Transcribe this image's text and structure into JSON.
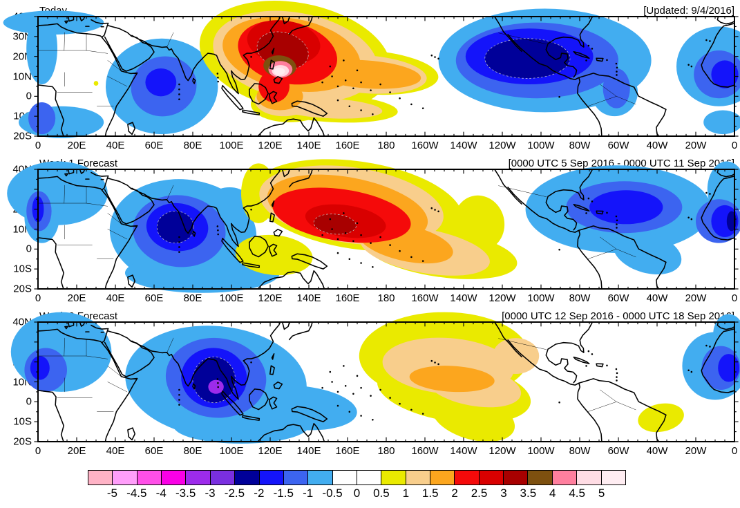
{
  "page": {
    "background": "#FFFFFF"
  },
  "axes": {
    "x_tick_labels": [
      [
        "0",
        0
      ],
      [
        "20E",
        20
      ],
      [
        "40E",
        40
      ],
      [
        "60E",
        60
      ],
      [
        "80E",
        80
      ],
      [
        "100E",
        100
      ],
      [
        "120E",
        120
      ],
      [
        "140E",
        140
      ],
      [
        "160E",
        160
      ],
      [
        "180",
        180
      ],
      [
        "160W",
        200
      ],
      [
        "140W",
        220
      ],
      [
        "120W",
        240
      ],
      [
        "100W",
        260
      ],
      [
        "80W",
        280
      ],
      [
        "60W",
        300
      ],
      [
        "40W",
        320
      ],
      [
        "20W",
        340
      ],
      [
        "0",
        360
      ]
    ],
    "y_tick_labels": [
      [
        "40N",
        40
      ],
      [
        "30N",
        30
      ],
      [
        "20N",
        20
      ],
      [
        "10N",
        10
      ],
      [
        "0",
        0
      ],
      [
        "10S",
        -10
      ],
      [
        "20S",
        -20
      ]
    ]
  },
  "colorbar": {
    "labels": [
      "-5",
      "-4.5",
      "-4",
      "-3.5",
      "-3",
      "-2.5",
      "-2",
      "-1.5",
      "-1",
      "-0.5",
      "0",
      "0.5",
      "1",
      "1.5",
      "2",
      "2.5",
      "3",
      "3.5",
      "4",
      "4.5",
      "5"
    ],
    "cell_colors": [
      "rose",
      "light_magenta",
      "magenta_pink",
      "magenta",
      "purple",
      "violet",
      "navy",
      "blue",
      "royal",
      "sky",
      "white",
      "white",
      "yellow",
      "tan",
      "orange",
      "red",
      "red2",
      "darkred",
      "brown",
      "pink",
      "lightpink",
      "palest"
    ]
  },
  "chart_data": {
    "type": "filled_contour_map",
    "projection": "equirectangular",
    "lon_range": [
      0,
      360
    ],
    "lat_range": [
      -20,
      40
    ],
    "contour_interval": 0.5,
    "palette": {
      "sky": "#42ADF0",
      "royal": "#3C64F0",
      "blue": "#1414FA",
      "navy": "#000099",
      "purple": "#9D2BEB",
      "violet": "#7A2FE0",
      "magenta": "#FA00E6",
      "magenta_pink": "#FF4FE8",
      "light_magenta": "#FF9EFA",
      "rose": "#FFB3C6",
      "white": "#FFFFFF",
      "yellow": "#EAEA00",
      "tan": "#F8CE8C",
      "orange": "#FCA61E",
      "red": "#F50A0A",
      "red2": "#D90000",
      "darkred": "#A80000",
      "brown": "#7D500F",
      "pink": "#FF7F9E",
      "lightpink": "#FFDCE4",
      "palest": "#FFEDF2"
    },
    "panels": [
      {
        "title": "Today",
        "timestamp": "[Updated: 9/4/2016]",
        "anomaly_centers": [
          {
            "lon": "126E",
            "lat": "13N",
            "sign": "positive",
            "peak_value": "> 5"
          },
          {
            "lon": "63E",
            "lat": "7N",
            "sign": "negative",
            "peak_value": "-1.5 to -2"
          },
          {
            "lon": "107W",
            "lat": "19N",
            "sign": "negative",
            "peak_value": "-2 to -2.5"
          },
          {
            "lon": "5W",
            "lat": "11N",
            "sign": "negative",
            "peak_value": "-1.5 to -2"
          }
        ],
        "shapes": [
          [
            "sky",
            262,
            22,
            55,
            26,
            0
          ],
          [
            "sky",
            298,
            38,
            12,
            12,
            0
          ],
          [
            "sky",
            352,
            25,
            22,
            20,
            0
          ],
          [
            "sky",
            354,
            53,
            10,
            6,
            0
          ],
          [
            "sky",
            8,
            3,
            26,
            6,
            0
          ],
          [
            "sky",
            2,
            16,
            8,
            18,
            0
          ],
          [
            "sky",
            12,
            53,
            22,
            8,
            0
          ],
          [
            "sky",
            64,
            35,
            29,
            24,
            0
          ],
          [
            "royal",
            65,
            35,
            17,
            15,
            -10
          ],
          [
            "royal",
            2,
            51,
            7,
            8,
            0
          ],
          [
            "royal",
            258,
            22,
            42,
            19,
            0
          ],
          [
            "royal",
            299,
            36,
            7,
            10,
            0
          ],
          [
            "royal",
            352,
            29,
            13,
            12,
            0
          ],
          [
            "blue",
            63.5,
            33,
            8,
            7,
            0
          ],
          [
            "blue",
            254,
            20,
            33,
            14,
            0
          ],
          [
            "blue",
            355,
            29,
            7,
            7,
            0
          ],
          [
            "navy",
            253,
            21,
            22,
            10,
            0,
            1
          ],
          [
            "yellow",
            133,
            20,
            50,
            27,
            10
          ],
          [
            "yellow",
            130,
            44,
            20,
            9,
            0
          ],
          [
            "yellow",
            152,
            46,
            34,
            7,
            3
          ],
          [
            "yellow",
            171,
            28,
            36,
            11,
            4
          ],
          [
            "yellow",
            30,
            33.5,
            1.2,
            1.2,
            0
          ],
          [
            "tan",
            133,
            20,
            43,
            22,
            10
          ],
          [
            "tan",
            127,
            42,
            15,
            8,
            0
          ],
          [
            "tan",
            150,
            46,
            28,
            5,
            3
          ],
          [
            "tan",
            170,
            29,
            31,
            9.5,
            4
          ],
          [
            "orange",
            131,
            19,
            36,
            18,
            10
          ],
          [
            "orange",
            125,
            40,
            12,
            7,
            0
          ],
          [
            "orange",
            170,
            29,
            28,
            7,
            4
          ],
          [
            "red",
            129,
            18,
            26,
            15.5,
            12
          ],
          [
            "red",
            122,
            35,
            8,
            8,
            0
          ],
          [
            "red2",
            127,
            13,
            19,
            11,
            8
          ],
          [
            "darkred",
            126.5,
            17,
            13.5,
            9,
            15,
            1
          ],
          [
            "brown",
            125,
            25,
            8.5,
            5.5,
            5
          ],
          [
            "pink",
            125.3,
            26.5,
            6.2,
            4.2,
            0
          ],
          [
            "lightpink",
            125.3,
            27.2,
            4.4,
            2.9,
            0
          ],
          [
            "palest",
            124.8,
            27.5,
            2.8,
            1.8,
            0
          ]
        ]
      },
      {
        "title": "Week 1 Forecast",
        "timestamp": "[0000 UTC 5 Sep 2016 - 0000 UTC 11 Sep 2016]",
        "anomaly_centers": [
          {
            "lon": "154E",
            "lat": "12N",
            "sign": "positive",
            "peak_value": "3 to 3.5"
          },
          {
            "lon": "71E",
            "lat": "11N",
            "sign": "negative",
            "peak_value": "-2 to -2.5"
          },
          {
            "lon": "56W",
            "lat": "21N",
            "sign": "negative",
            "peak_value": "-1.5 to -2"
          },
          {
            "lon": "2W",
            "lat": "14N",
            "sign": "negative",
            "peak_value": "-2 to -2.5"
          }
        ],
        "shapes": [
          [
            "sky",
            10,
            12,
            26,
            16,
            0
          ],
          [
            "sky",
            2,
            24,
            9,
            13,
            0
          ],
          [
            "sky",
            75,
            32,
            38,
            27,
            5
          ],
          [
            "sky",
            99,
            20,
            13,
            11,
            0
          ],
          [
            "sky",
            85,
            52,
            40,
            10,
            0
          ],
          [
            "sky",
            300,
            20,
            48,
            22,
            0
          ],
          [
            "sky",
            315,
            42,
            18,
            10,
            15
          ],
          [
            "sky",
            356,
            10,
            10,
            14,
            0
          ],
          [
            "royal",
            0.5,
            21,
            6.5,
            10,
            0
          ],
          [
            "royal",
            73,
            31,
            24,
            18,
            5
          ],
          [
            "royal",
            303,
            19,
            30,
            13,
            0
          ],
          [
            "royal",
            352,
            26,
            12,
            11,
            0
          ],
          [
            "blue",
            0,
            20,
            3,
            6.5,
            0
          ],
          [
            "blue",
            72,
            29,
            16,
            12,
            5
          ],
          [
            "blue",
            304,
            19,
            19,
            8.5,
            0
          ],
          [
            "blue",
            355,
            26,
            7,
            8,
            0
          ],
          [
            "navy",
            71,
            29,
            9.5,
            8,
            0,
            1
          ],
          [
            "navy",
            358.5,
            26,
            2.5,
            5,
            0
          ],
          [
            "yellow",
            114,
            12,
            9,
            15,
            0
          ],
          [
            "yellow",
            122,
            43,
            20,
            10,
            5
          ],
          [
            "yellow",
            165,
            18,
            55,
            22,
            8
          ],
          [
            "yellow",
            208,
            42,
            40,
            12,
            8
          ],
          [
            "yellow",
            228,
            27,
            13,
            14,
            -20
          ],
          [
            "tan",
            162,
            18,
            48,
            19,
            8
          ],
          [
            "tan",
            200,
            41,
            34,
            11,
            10
          ],
          [
            "orange",
            160,
            20,
            42,
            16,
            10
          ],
          [
            "orange",
            190,
            37,
            25,
            9,
            12
          ],
          [
            "red",
            157,
            23,
            36,
            13,
            8
          ],
          [
            "red2",
            159,
            26,
            21,
            8,
            8
          ],
          [
            "darkred",
            153.5,
            27.5,
            11,
            5,
            5,
            1
          ]
        ]
      },
      {
        "title": "Week 2 Forecast",
        "timestamp": "[0000 UTC 12 Sep 2016 - 0000 UTC 18 Sep 2016]",
        "anomaly_centers": [
          {
            "lon": "92E",
            "lat": "7N",
            "sign": "negative",
            "peak_value": "-3 to -3.5"
          },
          {
            "lon": "146W",
            "lat": "11N",
            "sign": "positive",
            "peak_value": "1.5 to 2"
          },
          {
            "lon": "5W",
            "lat": "17N",
            "sign": "negative",
            "peak_value": "-1.5 to -2"
          },
          {
            "lon": "38W",
            "lat": "8S",
            "sign": "positive",
            "peak_value": "0.5 to 1"
          }
        ],
        "shapes": [
          [
            "sky",
            12,
            15,
            26,
            20,
            0
          ],
          [
            "sky",
            92,
            30,
            47,
            28,
            5
          ],
          [
            "sky",
            135,
            43,
            30,
            11,
            5
          ],
          [
            "sky",
            120,
            50,
            18,
            8,
            0
          ],
          [
            "sky",
            105,
            52,
            35,
            9,
            0
          ],
          [
            "sky",
            350,
            22,
            17,
            17,
            0
          ],
          [
            "sky",
            357,
            6,
            8,
            10,
            0
          ],
          [
            "royal",
            4,
            24,
            11,
            11,
            0
          ],
          [
            "royal",
            92,
            28,
            26,
            20,
            5
          ],
          [
            "royal",
            353,
            23,
            10,
            11,
            0
          ],
          [
            "blue",
            1,
            23,
            5,
            6,
            0
          ],
          [
            "blue",
            91,
            28,
            17,
            15,
            5
          ],
          [
            "blue",
            357,
            23,
            5.5,
            7,
            0
          ],
          [
            "navy",
            91,
            29,
            11,
            11.5,
            0,
            1
          ],
          [
            "purple",
            92,
            32.5,
            4,
            3.5,
            0
          ],
          [
            "yellow",
            210,
            17,
            44,
            22,
            0
          ],
          [
            "yellow",
            215,
            35,
            40,
            15,
            8
          ],
          [
            "yellow",
            225,
            48,
            22,
            11,
            15
          ],
          [
            "yellow",
            322,
            48,
            12,
            7,
            -10
          ],
          [
            "tan",
            212,
            22,
            34,
            14,
            4
          ],
          [
            "tan",
            225,
            32,
            25,
            10,
            10
          ],
          [
            "tan",
            247,
            17,
            12,
            9,
            0
          ],
          [
            "orange",
            214,
            28.5,
            22,
            6.5,
            3
          ]
        ]
      }
    ]
  }
}
